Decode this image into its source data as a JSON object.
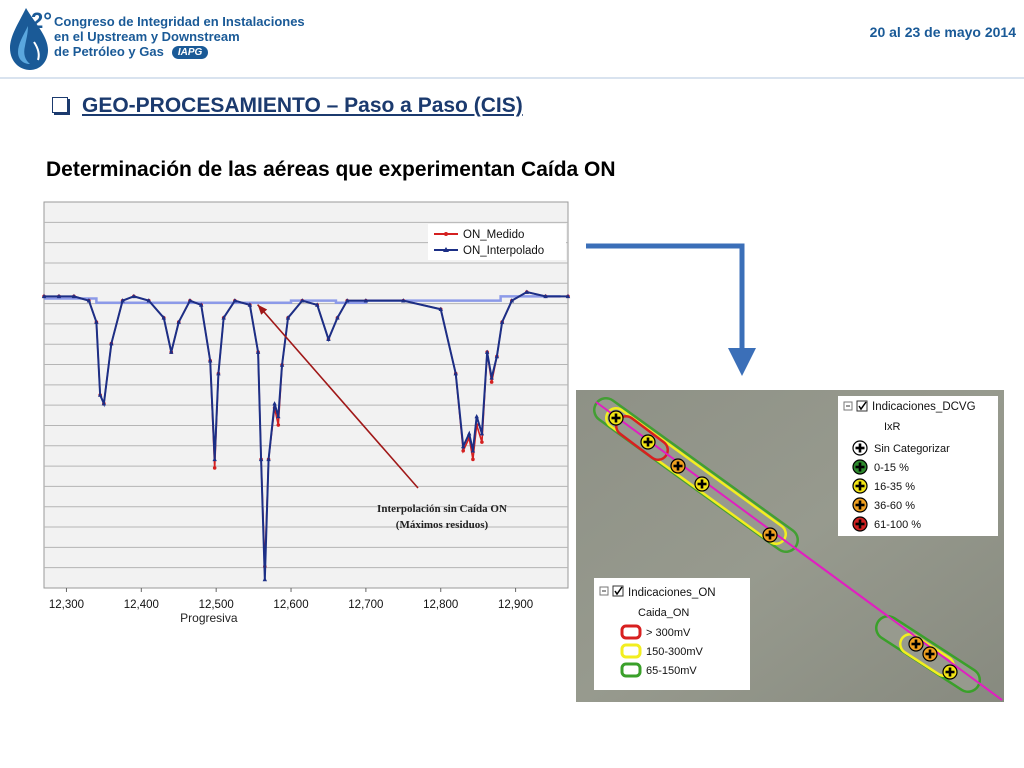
{
  "header": {
    "logo_number": "2°",
    "title_line1": "Congreso de Integridad en Instalaciones",
    "title_line2": "en el Upstream y Downstream",
    "title_line3": "de Petróleo y Gas",
    "org_badge": "IAPG",
    "dates": "20 al 23 de mayo 2014"
  },
  "slide": {
    "section_title": "GEO-PROCESAMIENTO – Paso a Paso (CIS)",
    "subtitle": "Determinación de las aéreas que experimentan Caída ON"
  },
  "colors": {
    "brand_blue": "#1a5a97",
    "on_medido": "#d42020",
    "on_interpolado": "#1c2f86",
    "interp_flat": "#8c9ae8",
    "annotation_arrow": "#a01818",
    "layout_arrow": "#3b6fb8",
    "map_bg": "#8c8f84",
    "pipeline": "#e020c0"
  },
  "chart_data": {
    "type": "line",
    "xlabel": "Progresiva",
    "ylabel": "",
    "xlim": [
      12270,
      12970
    ],
    "ylim": [
      -1.6,
      -0.7
    ],
    "x_ticks": [
      "12,300",
      "12,400",
      "12,500",
      "12,600",
      "12,700",
      "12,800",
      "12,900"
    ],
    "grid": true,
    "legend": "top-right",
    "x": [
      12270,
      12290,
      12310,
      12330,
      12340,
      12345,
      12350,
      12360,
      12375,
      12390,
      12410,
      12430,
      12440,
      12450,
      12465,
      12480,
      12492,
      12498,
      12503,
      12510,
      12525,
      12545,
      12556,
      12560,
      12565,
      12570,
      12578,
      12583,
      12588,
      12596,
      12615,
      12635,
      12650,
      12662,
      12675,
      12700,
      12750,
      12800,
      12820,
      12830,
      12838,
      12843,
      12848,
      12855,
      12862,
      12868,
      12875,
      12882,
      12895,
      12915,
      12940,
      12970
    ],
    "series": [
      {
        "name": "ON_Medido",
        "values": [
          -0.92,
          -0.92,
          -0.92,
          -0.93,
          -0.98,
          -1.15,
          -1.17,
          -1.03,
          -0.93,
          -0.92,
          -0.93,
          -0.97,
          -1.05,
          -0.98,
          -0.93,
          -0.94,
          -1.07,
          -1.32,
          -1.1,
          -0.97,
          -0.93,
          -0.94,
          -1.05,
          -1.3,
          -1.55,
          -1.3,
          -1.18,
          -1.22,
          -1.08,
          -0.97,
          -0.93,
          -0.94,
          -1.02,
          -0.97,
          -0.93,
          -0.93,
          -0.93,
          -0.95,
          -1.1,
          -1.28,
          -1.25,
          -1.3,
          -1.22,
          -1.26,
          -1.05,
          -1.12,
          -1.06,
          -0.98,
          -0.93,
          -0.91,
          -0.92,
          -0.92
        ]
      },
      {
        "name": "ON_Interpolado",
        "values": [
          -0.92,
          -0.92,
          -0.92,
          -0.93,
          -0.98,
          -1.15,
          -1.17,
          -1.03,
          -0.93,
          -0.92,
          -0.93,
          -0.97,
          -1.05,
          -0.98,
          -0.93,
          -0.94,
          -1.07,
          -1.3,
          -1.1,
          -0.97,
          -0.93,
          -0.94,
          -1.05,
          -1.3,
          -1.58,
          -1.3,
          -1.17,
          -1.2,
          -1.08,
          -0.97,
          -0.93,
          -0.94,
          -1.02,
          -0.97,
          -0.93,
          -0.93,
          -0.93,
          -0.95,
          -1.1,
          -1.27,
          -1.24,
          -1.28,
          -1.2,
          -1.24,
          -1.05,
          -1.11,
          -1.06,
          -0.98,
          -0.93,
          -0.91,
          -0.92,
          -0.92
        ]
      }
    ],
    "interpolation_baseline": {
      "x": [
        12270,
        12340,
        12420,
        12530,
        12600,
        12660,
        12700,
        12820,
        12880,
        12960
      ],
      "values": [
        -0.925,
        -0.935,
        -0.935,
        -0.935,
        -0.93,
        -0.935,
        -0.93,
        -0.93,
        -0.92,
        -0.92
      ]
    },
    "annotation": {
      "line1": "Interpolación sin Caída ON",
      "line2": "(Máximos residuos)",
      "points_to_x": 12550,
      "points_to_y": -0.93
    }
  },
  "map": {
    "legend_dcvg": {
      "title": "Indicaciones_DCVG",
      "field": "IxR",
      "items": [
        {
          "label": "Sin Categorizar",
          "color": "#ffffff"
        },
        {
          "label": "0-15  %",
          "color": "#2e8b2e"
        },
        {
          "label": "16-35  %",
          "color": "#f2e416"
        },
        {
          "label": "36-60  %",
          "color": "#f0a020"
        },
        {
          "label": "61-100  %",
          "color": "#d02020"
        }
      ]
    },
    "legend_on": {
      "title": "Indicaciones_ON",
      "field": "Caida_ON",
      "items": [
        {
          "label": "> 300mV",
          "color": "#d82020"
        },
        {
          "label": "150-300mV",
          "color": "#f2ee20"
        },
        {
          "label": "65-150mV",
          "color": "#3aa02a"
        }
      ]
    }
  }
}
